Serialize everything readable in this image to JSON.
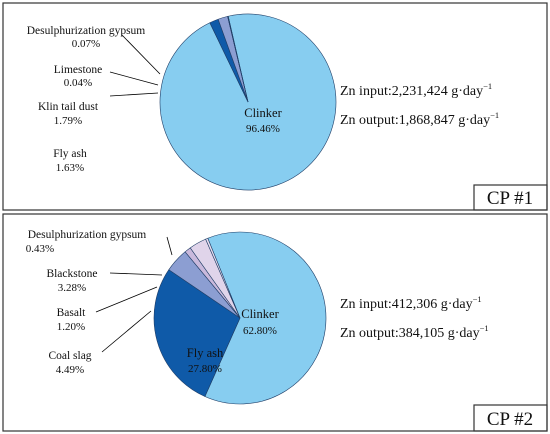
{
  "colors": {
    "clinker_light": "#87CDF0",
    "fly_ash_dark": "#0F5AA8",
    "medium_blue": "#8C9ED2",
    "light_purple": "#C9B9DC",
    "pale_purple": "#E0D4EA",
    "slice_stroke": "#1f3d66"
  },
  "chart_data": [
    {
      "type": "pie",
      "panel_label": "CP #1",
      "zn_input": "Zn input:2,231,424 g·day",
      "zn_output": "Zn output:1,868,847 g·day",
      "unit_exponent": "−1",
      "slices": [
        {
          "name": "Clinker",
          "value": 96.46,
          "value_label": "96.46%",
          "color": "#87CDF0"
        },
        {
          "name": "Fly ash",
          "value": 1.63,
          "value_label": "1.63%",
          "color": "#0F5AA8"
        },
        {
          "name": "Klin tail dust",
          "value": 1.79,
          "value_label": "1.79%",
          "color": "#8C9ED2"
        },
        {
          "name": "Limestone",
          "value": 0.04,
          "value_label": "0.04%",
          "color": "#C9B9DC"
        },
        {
          "name": "Desulphurization gypsum",
          "value": 0.07,
          "value_label": "0.07%",
          "color": "#E0D4EA"
        }
      ]
    },
    {
      "type": "pie",
      "panel_label": "CP #2",
      "zn_input": "Zn input:412,306 g·day",
      "zn_output": "Zn output:384,105 g·day",
      "unit_exponent": "−1",
      "slices": [
        {
          "name": "Clinker",
          "value": 62.8,
          "value_label": "62.80%",
          "color": "#87CDF0"
        },
        {
          "name": "Fly ash",
          "value": 27.8,
          "value_label": "27.80%",
          "color": "#0F5AA8"
        },
        {
          "name": "Coal slag",
          "value": 4.49,
          "value_label": "4.49%",
          "color": "#8C9ED2"
        },
        {
          "name": "Basalt",
          "value": 1.2,
          "value_label": "1.20%",
          "color": "#C9B9DC"
        },
        {
          "name": "Blackstone",
          "value": 3.28,
          "value_label": "3.28%",
          "color": "#E0D4EA"
        },
        {
          "name": "Desulphurization gypsum",
          "value": 0.43,
          "value_label": "0.43%",
          "color": "#E8DEF0"
        }
      ]
    }
  ]
}
